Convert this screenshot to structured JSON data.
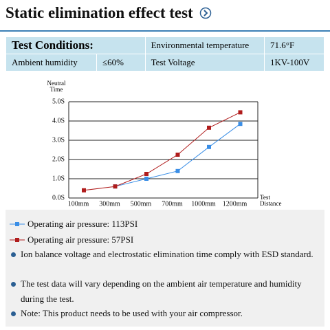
{
  "header": {
    "title": "Static elimination effect test"
  },
  "table": {
    "rows": [
      [
        "Test Conditions:",
        "Environmental temperature",
        "71.6°F"
      ],
      [
        "Ambient humidity",
        "≤60%",
        "Test Voltage",
        "1KV-100V"
      ]
    ]
  },
  "chart_data": {
    "type": "line",
    "y_label": "Neutral Time",
    "x_label": "Test Distance",
    "categories": [
      "100mm",
      "300mm",
      "500mm",
      "700mm",
      "1000mm",
      "1200mm"
    ],
    "series": [
      {
        "name": "Operating air pressure: 113PSI",
        "color": "#3a8ee6",
        "values": [
          null,
          0.6,
          1.0,
          1.4,
          2.65,
          3.85
        ]
      },
      {
        "name": "Operating air pressure: 57PSI",
        "color": "#b01c1c",
        "values": [
          0.4,
          0.6,
          1.25,
          2.25,
          3.65,
          4.45
        ]
      }
    ],
    "ylim": [
      0,
      5
    ],
    "yticks": [
      {
        "value": 0,
        "label": "0.0S"
      },
      {
        "value": 1,
        "label": "1.0S"
      },
      {
        "value": 2,
        "label": "2.0S"
      },
      {
        "value": 3,
        "label": "3.0S"
      },
      {
        "value": 4,
        "label": "4.0S"
      },
      {
        "value": 5,
        "label": "5.0S"
      }
    ],
    "grid": true
  },
  "notes": [
    "Ion balance voltage and electrostatic elimination time comply with ESD standard.",
    "The test data will vary depending on the ambient air temperature and humidity during the test.",
    "Note: This product needs to be used with your air compressor."
  ]
}
